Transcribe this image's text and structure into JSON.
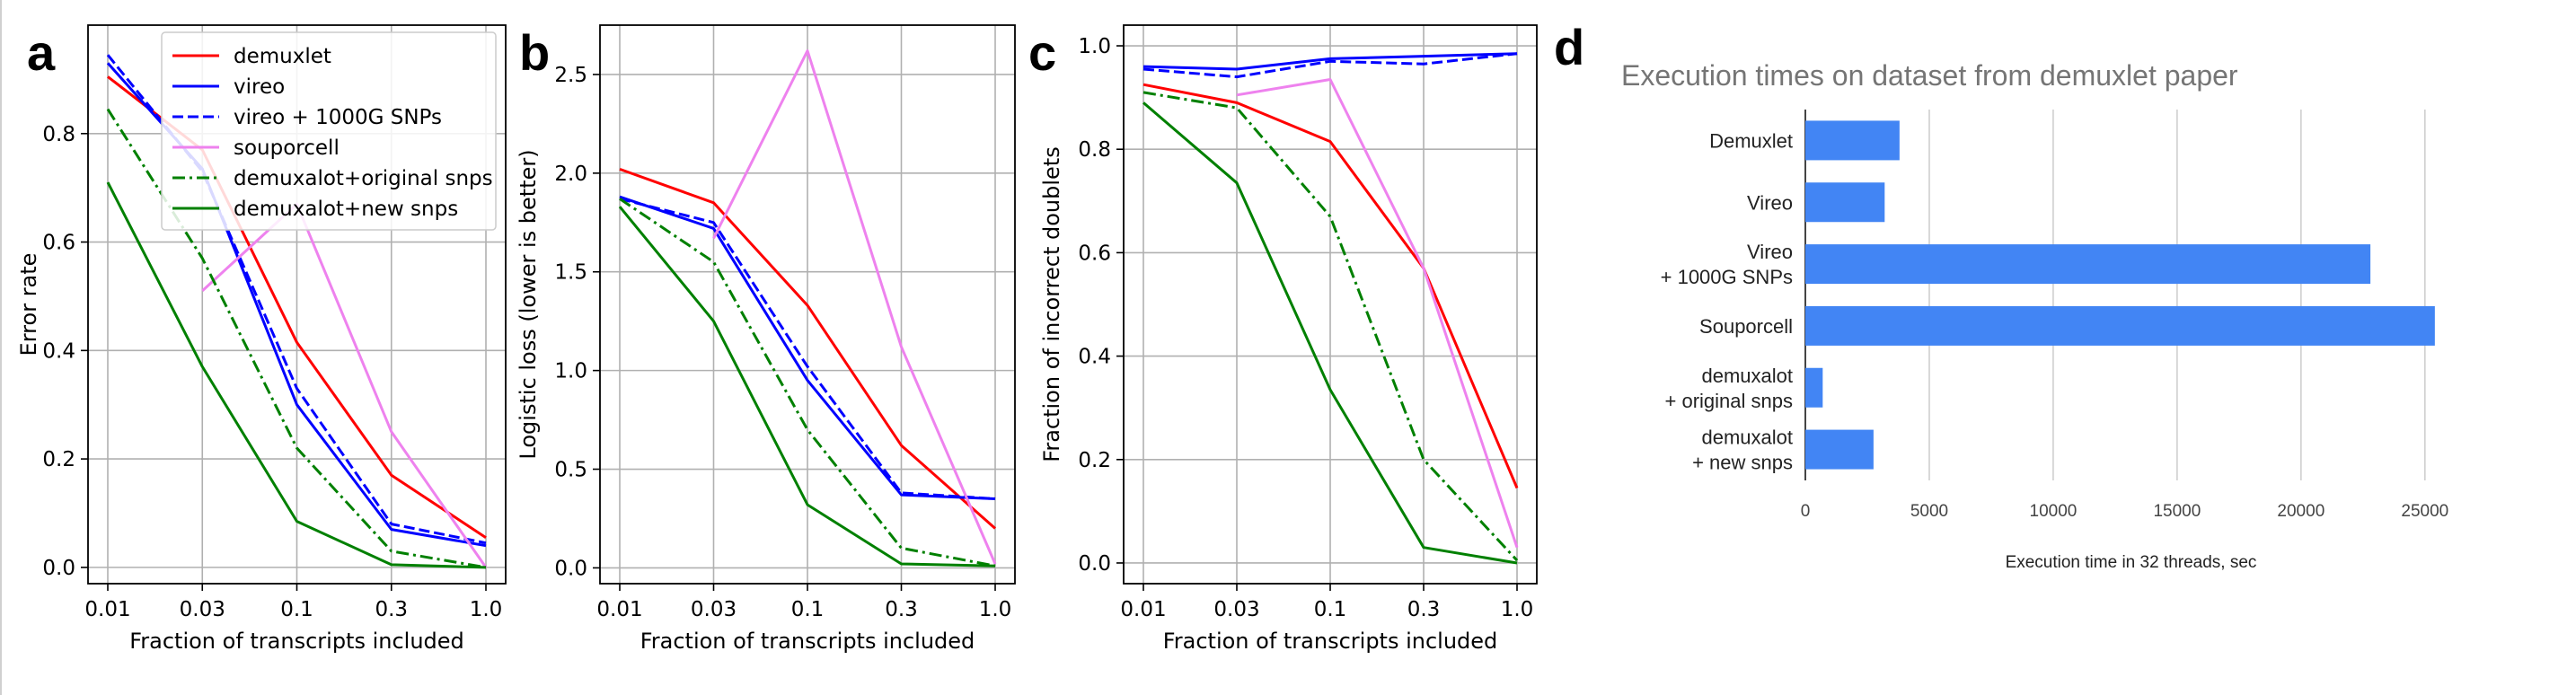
{
  "chart_data": [
    {
      "panel": "a",
      "type": "line",
      "x": [
        "0.01",
        "0.03",
        "0.1",
        "0.3",
        "1.0"
      ],
      "xlabel": "Fraction of transcripts included",
      "ylabel": "Error rate",
      "ylim": [
        -0.03,
        1.0
      ],
      "yticks": [
        "0.0",
        "0.2",
        "0.4",
        "0.6",
        "0.8"
      ],
      "grid": true,
      "legend": "top-right",
      "series": [
        {
          "name": "demuxlet",
          "color": "#ff0000",
          "dash": "solid",
          "values": [
            0.905,
            0.77,
            0.415,
            0.17,
            0.055
          ]
        },
        {
          "name": "vireo",
          "color": "#0000ff",
          "dash": "solid",
          "values": [
            0.93,
            0.735,
            0.3,
            0.07,
            0.04
          ]
        },
        {
          "name": "vireo + 1000G SNPs",
          "color": "#0000ff",
          "dash": "dashed",
          "values": [
            0.945,
            0.73,
            0.33,
            0.08,
            0.045
          ]
        },
        {
          "name": "souporcell",
          "color": "#ee82ee",
          "dash": "solid",
          "values": [
            null,
            0.51,
            0.67,
            0.25,
            0.0
          ]
        },
        {
          "name": "demuxalot+original snps",
          "color": "#008000",
          "dash": "dashdot",
          "values": [
            0.845,
            0.57,
            0.22,
            0.03,
            0.0
          ]
        },
        {
          "name": "demuxalot+new snps",
          "color": "#008000",
          "dash": "solid",
          "values": [
            0.71,
            0.37,
            0.085,
            0.005,
            0.0
          ]
        }
      ]
    },
    {
      "panel": "b",
      "type": "line",
      "x": [
        "0.01",
        "0.03",
        "0.1",
        "0.3",
        "1.0"
      ],
      "xlabel": "Fraction of transcripts included",
      "ylabel": "Logistic loss (lower is better)",
      "ylim": [
        -0.08,
        2.75
      ],
      "yticks": [
        "0.0",
        "0.5",
        "1.0",
        "1.5",
        "2.0",
        "2.5"
      ],
      "grid": true,
      "series": [
        {
          "name": "demuxlet",
          "color": "#ff0000",
          "dash": "solid",
          "values": [
            2.02,
            1.85,
            1.33,
            0.62,
            0.2
          ]
        },
        {
          "name": "vireo",
          "color": "#0000ff",
          "dash": "solid",
          "values": [
            1.88,
            1.72,
            0.95,
            0.37,
            0.35
          ]
        },
        {
          "name": "vireo + 1000G SNPs",
          "color": "#0000ff",
          "dash": "dashed",
          "values": [
            1.87,
            1.75,
            1.02,
            0.38,
            0.35
          ]
        },
        {
          "name": "souporcell",
          "color": "#ee82ee",
          "dash": "solid",
          "values": [
            null,
            1.67,
            2.62,
            1.12,
            0.02
          ]
        },
        {
          "name": "demuxalot+original snps",
          "color": "#008000",
          "dash": "dashdot",
          "values": [
            1.87,
            1.55,
            0.7,
            0.1,
            0.01
          ]
        },
        {
          "name": "demuxalot+new snps",
          "color": "#008000",
          "dash": "solid",
          "values": [
            1.83,
            1.25,
            0.32,
            0.02,
            0.01
          ]
        }
      ]
    },
    {
      "panel": "c",
      "type": "line",
      "x": [
        "0.01",
        "0.03",
        "0.1",
        "0.3",
        "1.0"
      ],
      "xlabel": "Fraction of transcripts included",
      "ylabel": "Fraction of incorrect doublets",
      "ylim": [
        -0.04,
        1.04
      ],
      "yticks": [
        "0.0",
        "0.2",
        "0.4",
        "0.6",
        "0.8",
        "1.0"
      ],
      "grid": true,
      "series": [
        {
          "name": "demuxlet",
          "color": "#ff0000",
          "dash": "solid",
          "values": [
            0.925,
            0.89,
            0.815,
            0.57,
            0.145
          ]
        },
        {
          "name": "vireo",
          "color": "#0000ff",
          "dash": "solid",
          "values": [
            0.96,
            0.955,
            0.975,
            0.98,
            0.985
          ]
        },
        {
          "name": "vireo + 1000G SNPs",
          "color": "#0000ff",
          "dash": "dashed",
          "values": [
            0.955,
            0.94,
            0.97,
            0.965,
            0.985
          ]
        },
        {
          "name": "souporcell",
          "color": "#ee82ee",
          "dash": "solid",
          "values": [
            null,
            0.905,
            0.935,
            0.57,
            0.03
          ]
        },
        {
          "name": "demuxalot+original snps",
          "color": "#008000",
          "dash": "dashdot",
          "values": [
            0.91,
            0.88,
            0.67,
            0.2,
            0.005
          ]
        },
        {
          "name": "demuxalot+new snps",
          "color": "#008000",
          "dash": "solid",
          "values": [
            0.89,
            0.735,
            0.335,
            0.03,
            0.0
          ]
        }
      ]
    },
    {
      "panel": "d",
      "type": "bar",
      "orientation": "horizontal",
      "title": "Execution times on dataset from demuxlet paper",
      "xlabel": "Execution time in 32 threads, sec",
      "xlim": [
        0,
        27000
      ],
      "xticks": [
        "0",
        "5000",
        "10000",
        "15000",
        "20000",
        "25000"
      ],
      "color": "#4285f4",
      "categories": [
        [
          "Demuxlet"
        ],
        [
          "Vireo"
        ],
        [
          "Vireo",
          "+ 1000G SNPs"
        ],
        [
          "Souporcell"
        ],
        [
          "demuxalot",
          "+ original snps"
        ],
        [
          "demuxalot",
          "+ new snps"
        ]
      ],
      "values": [
        3800,
        3200,
        22800,
        25400,
        700,
        2750
      ]
    }
  ]
}
